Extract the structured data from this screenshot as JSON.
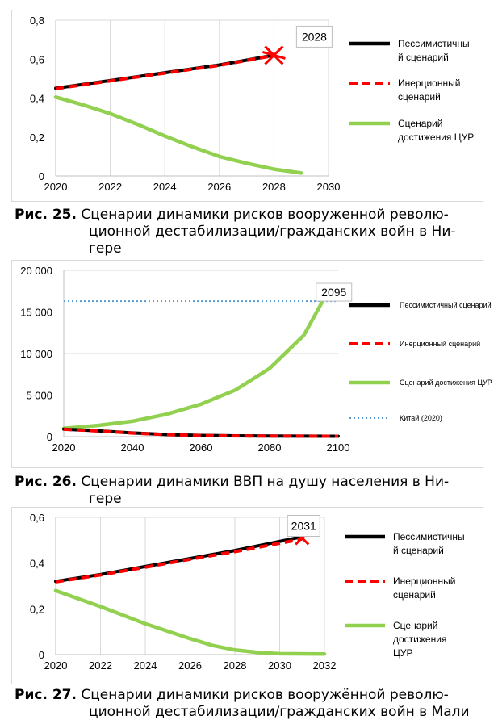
{
  "charts": [
    {
      "number": "Рис. 25.",
      "caption_line1": "Сценарии динамики рисков вооруженной револю-",
      "caption_line2": "ционной дестабилизации/гражданских войн в Ни-",
      "caption_line3": "гере",
      "chart_data": {
        "type": "line",
        "xlim": [
          2020,
          2030
        ],
        "ylim": [
          0,
          0.8
        ],
        "x_ticks": [
          "2020",
          "2022",
          "2024",
          "2026",
          "2028",
          "2030"
        ],
        "y_ticks": [
          "0",
          "0,2",
          "0,4",
          "0,6",
          "0,8"
        ],
        "grid": "vertical",
        "legend_position": "right",
        "annotation": {
          "label": "2028",
          "x": 2028,
          "y": 0.62
        },
        "series": [
          {
            "name": "Пессимистичный сценарий",
            "legend": [
              "Пессимистичны",
              "й сценарий"
            ],
            "color": "#000000",
            "style": "solid",
            "x": [
              2020,
              2021,
              2022,
              2023,
              2024,
              2025,
              2026,
              2027,
              2028
            ],
            "y": [
              0.45,
              0.47,
              0.49,
              0.51,
              0.53,
              0.55,
              0.57,
              0.595,
              0.62
            ]
          },
          {
            "name": "Инерционный сценарий",
            "legend": [
              "Инерционный",
              "сценарий"
            ],
            "color": "#ff0000",
            "style": "dashed",
            "x": [
              2020,
              2021,
              2022,
              2023,
              2024,
              2025,
              2026,
              2027,
              2028
            ],
            "y": [
              0.448,
              0.468,
              0.488,
              0.508,
              0.528,
              0.548,
              0.568,
              0.593,
              0.618
            ]
          },
          {
            "name": "Сценарий достижения ЦУР",
            "legend": [
              "Сценарий",
              "достижения ЦУР"
            ],
            "color": "#92d050",
            "style": "solid",
            "x": [
              2020,
              2021,
              2022,
              2023,
              2024,
              2025,
              2026,
              2027,
              2028,
              2029
            ],
            "y": [
              0.405,
              0.365,
              0.32,
              0.265,
              0.205,
              0.15,
              0.1,
              0.065,
              0.035,
              0.015
            ]
          }
        ]
      }
    },
    {
      "number": "Рис. 26.",
      "caption_line1": "Сценарии динамики ВВП на душу населения в Ни-",
      "caption_line2": "гере",
      "caption_line3": "",
      "chart_data": {
        "type": "line",
        "xlim": [
          2020,
          2100
        ],
        "ylim": [
          0,
          20000
        ],
        "x_ticks": [
          "2020",
          "2040",
          "2060",
          "2080",
          "2100"
        ],
        "y_ticks": [
          "0",
          "5 000",
          "10 000",
          "15 000",
          "20 000"
        ],
        "grid": "horizontal",
        "legend_position": "right",
        "annotation": {
          "label": "2095",
          "x": 2095,
          "y": 16500
        },
        "series": [
          {
            "name": "Пессимистичный сценарий",
            "legend": [
              "Пессимистичный сценарий"
            ],
            "color": "#000000",
            "style": "solid",
            "x": [
              2020,
              2030,
              2040,
              2050,
              2060,
              2070,
              2080,
              2090,
              2100
            ],
            "y": [
              900,
              700,
              450,
              250,
              150,
              100,
              80,
              60,
              50
            ]
          },
          {
            "name": "Инерционный сценарий",
            "legend": [
              "Инерционный сценарий"
            ],
            "color": "#ff0000",
            "style": "dashed",
            "x": [
              2020,
              2030,
              2040,
              2050,
              2060,
              2070,
              2080,
              2090,
              2100
            ],
            "y": [
              880,
              680,
              430,
              240,
              140,
              90,
              70,
              55,
              45
            ]
          },
          {
            "name": "Сценарий достижения ЦУР",
            "legend": [
              "Сценарий достижения ЦУР"
            ],
            "color": "#92d050",
            "style": "solid",
            "x": [
              2020,
              2030,
              2040,
              2050,
              2060,
              2070,
              2080,
              2090,
              2096
            ],
            "y": [
              1000,
              1350,
              1850,
              2700,
              3900,
              5600,
              8200,
              12200,
              16700
            ]
          },
          {
            "name": "Китай (2020)",
            "legend": [
              "Китай (2020)"
            ],
            "color": "#5b9bd5",
            "style": "dotted",
            "x": [
              2020,
              2100
            ],
            "y": [
              16300,
              16300
            ]
          }
        ]
      }
    },
    {
      "number": "Рис. 27.",
      "caption_line1": "Сценарии динамики рисков вооружённой револю-",
      "caption_line2": "ционной дестабилизации/гражданских войн в Мали",
      "caption_line3": "",
      "chart_data": {
        "type": "line",
        "xlim": [
          2020,
          2032
        ],
        "ylim": [
          0,
          0.6
        ],
        "x_ticks": [
          "2020",
          "2022",
          "2024",
          "2026",
          "2028",
          "2030",
          "2032"
        ],
        "y_ticks": [
          "0",
          "0,2",
          "0,4",
          "0,6"
        ],
        "grid": "vertical",
        "legend_position": "right",
        "annotation": {
          "label": "2031",
          "x": 2031,
          "y": 0.51
        },
        "series": [
          {
            "name": "Пессимистичный сценарий",
            "legend": [
              "Пессимистичны",
              "й сценарий"
            ],
            "color": "#000000",
            "style": "solid",
            "x": [
              2020,
              2022,
              2024,
              2026,
              2028,
              2030,
              2031
            ],
            "y": [
              0.32,
              0.35,
              0.385,
              0.42,
              0.455,
              0.495,
              0.515
            ]
          },
          {
            "name": "Инерционный сценарий",
            "legend": [
              "Инерционный",
              "сценарий"
            ],
            "color": "#ff0000",
            "style": "dashed",
            "x": [
              2020,
              2022,
              2024,
              2026,
              2028,
              2030,
              2031
            ],
            "y": [
              0.318,
              0.348,
              0.382,
              0.417,
              0.45,
              0.487,
              0.505
            ]
          },
          {
            "name": "Сценарий достижения ЦУР",
            "legend": [
              "Сценарий",
              "достижения",
              "ЦУР"
            ],
            "color": "#92d050",
            "style": "solid",
            "x": [
              2020,
              2022,
              2024,
              2026,
              2027,
              2028,
              2029,
              2030,
              2032
            ],
            "y": [
              0.28,
              0.21,
              0.135,
              0.07,
              0.04,
              0.02,
              0.01,
              0.004,
              0.003
            ]
          }
        ]
      }
    }
  ]
}
